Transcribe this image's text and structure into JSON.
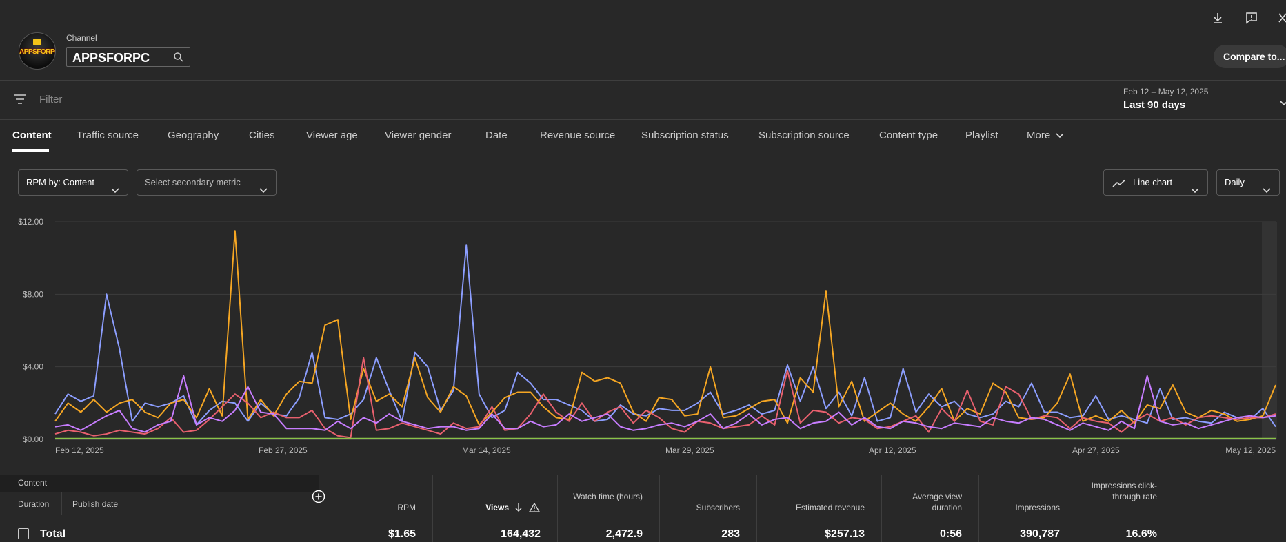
{
  "header": {
    "channel_label": "Channel",
    "channel_name": "APPSFORPC",
    "avatar_text": "APPSFORPC",
    "compare_label": "Compare to..."
  },
  "filter": {
    "placeholder": "Filter"
  },
  "date": {
    "range": "Feb 12 – May 12, 2025",
    "label": "Last 90 days"
  },
  "tabs": [
    {
      "label": "Content"
    },
    {
      "label": "Traffic source"
    },
    {
      "label": "Geography"
    },
    {
      "label": "Cities"
    },
    {
      "label": "Viewer age"
    },
    {
      "label": "Viewer gender"
    },
    {
      "label": "Date"
    },
    {
      "label": "Revenue source"
    },
    {
      "label": "Subscription status"
    },
    {
      "label": "Subscription source"
    },
    {
      "label": "Content type"
    },
    {
      "label": "Playlist"
    },
    {
      "label": "More"
    }
  ],
  "controls": {
    "primary_metric": "RPM by: Content",
    "secondary_metric": "Select secondary metric",
    "chart_type": "Line chart",
    "granularity": "Daily"
  },
  "chart_data": {
    "type": "line",
    "y_ticks": [
      "$12.00",
      "$8.00",
      "$4.00",
      "$0.00"
    ],
    "ylim": [
      0,
      12
    ],
    "x_ticks": [
      "Feb 12, 2025",
      "Feb 27, 2025",
      "Mar 14, 2025",
      "Mar 29, 2025",
      "Apr 12, 2025",
      "Apr 27, 2025",
      "May 12, 2025"
    ],
    "grid": true,
    "series": [
      {
        "color": "#8c9eff",
        "values": [
          1.4,
          2.5,
          2.1,
          2.4,
          8.0,
          5.0,
          1.0,
          2.0,
          1.8,
          2.0,
          2.4,
          0.8,
          1.6,
          2.1,
          2.0,
          1.0,
          2.0,
          1.4,
          1.3,
          2.3,
          4.8,
          1.2,
          1.1,
          1.4,
          2.2,
          4.5,
          2.7,
          1.0,
          4.8,
          4.0,
          1.6,
          2.7,
          10.7,
          2.5,
          1.2,
          1.6,
          3.7,
          3.1,
          2.2,
          2.2,
          1.9,
          1.6,
          1.0,
          1.1,
          1.9,
          1.4,
          1.3,
          1.7,
          1.6,
          1.6,
          2.0,
          2.6,
          1.4,
          1.6,
          1.9,
          1.4,
          1.6,
          4.1,
          2.1,
          4.0,
          1.7,
          2.6,
          1.3,
          3.4,
          1.0,
          1.2,
          3.9,
          1.5,
          2.5,
          1.8,
          2.1,
          1.4,
          1.2,
          1.4,
          2.1,
          1.8,
          3.1,
          1.5,
          1.5,
          1.2,
          1.3,
          2.4,
          1.1,
          1.3,
          1.1,
          0.9,
          2.8,
          1.1,
          1.2,
          1.0,
          0.9,
          1.5,
          1.2,
          1.1,
          1.7,
          0.7
        ]
      },
      {
        "color": "#f5a623",
        "values": [
          1.0,
          2.0,
          1.5,
          2.2,
          1.5,
          2.0,
          2.2,
          1.5,
          1.2,
          2.0,
          2.2,
          1.2,
          2.8,
          1.3,
          11.5,
          1.1,
          2.2,
          1.3,
          2.5,
          3.2,
          3.1,
          6.3,
          6.6,
          1.1,
          3.9,
          2.1,
          2.5,
          1.8,
          4.5,
          2.3,
          1.5,
          2.9,
          2.4,
          0.8,
          1.5,
          2.3,
          2.6,
          2.6,
          1.8,
          1.2,
          1.1,
          3.7,
          3.2,
          3.4,
          3.1,
          1.5,
          1.0,
          2.3,
          2.2,
          1.3,
          1.4,
          4.0,
          1.2,
          1.3,
          1.7,
          2.1,
          2.2,
          0.9,
          3.4,
          2.6,
          8.2,
          1.8,
          3.2,
          1.0,
          1.5,
          2.0,
          1.4,
          1.0,
          1.8,
          2.8,
          1.0,
          1.7,
          1.4,
          3.1,
          2.6,
          1.2,
          1.1,
          1.2,
          2.0,
          3.6,
          1.0,
          1.3,
          1.0,
          1.6,
          0.9,
          1.9,
          1.7,
          3.0,
          1.5,
          1.2,
          1.6,
          1.4,
          1.0,
          1.1,
          1.3,
          3.0
        ]
      },
      {
        "color": "#e8606e",
        "values": [
          0.3,
          0.5,
          0.4,
          0.2,
          0.3,
          0.5,
          0.4,
          0.3,
          0.6,
          1.2,
          0.4,
          0.5,
          1.1,
          1.8,
          2.5,
          2.0,
          1.2,
          1.5,
          1.2,
          1.2,
          1.6,
          0.6,
          0.2,
          0.1,
          4.5,
          0.5,
          0.6,
          0.9,
          0.7,
          0.5,
          0.3,
          0.9,
          0.6,
          0.7,
          1.8,
          0.5,
          0.6,
          1.4,
          2.5,
          1.5,
          1.0,
          2.0,
          1.0,
          1.5,
          1.8,
          0.9,
          1.6,
          1.2,
          0.6,
          0.4,
          1.0,
          0.9,
          0.6,
          0.7,
          0.8,
          1.3,
          0.8,
          3.8,
          0.9,
          1.6,
          1.5,
          0.9,
          1.2,
          1.1,
          0.6,
          0.7,
          1.0,
          1.3,
          0.4,
          1.7,
          1.0,
          2.7,
          1.0,
          0.8,
          2.9,
          2.5,
          1.1,
          1.3,
          1.2,
          0.6,
          1.2,
          1.0,
          0.9,
          0.4,
          1.0,
          1.4,
          1.0,
          1.2,
          0.8,
          1.2,
          1.3,
          1.2,
          1.1,
          1.2,
          1.2,
          1.4
        ]
      },
      {
        "color": "#c77dff",
        "values": [
          0.7,
          0.8,
          0.5,
          0.9,
          1.3,
          1.6,
          0.6,
          0.4,
          0.8,
          1.0,
          3.5,
          0.8,
          1.2,
          1.0,
          1.6,
          2.9,
          1.5,
          1.4,
          0.6,
          0.6,
          0.6,
          0.5,
          1.0,
          0.6,
          1.2,
          0.9,
          1.4,
          1.0,
          0.8,
          0.6,
          0.7,
          0.7,
          0.5,
          0.6,
          1.4,
          0.6,
          0.6,
          1.0,
          0.7,
          0.8,
          1.4,
          1.0,
          1.2,
          1.4,
          0.7,
          0.5,
          0.6,
          0.8,
          0.9,
          0.7,
          1.0,
          1.4,
          0.6,
          0.9,
          1.4,
          0.8,
          1.1,
          1.2,
          0.6,
          0.9,
          1.0,
          1.5,
          0.8,
          1.2,
          0.7,
          0.6,
          1.0,
          0.9,
          0.7,
          0.6,
          0.9,
          0.8,
          0.7,
          1.2,
          1.0,
          0.9,
          1.2,
          1.1,
          0.8,
          0.5,
          0.9,
          0.7,
          0.5,
          1.0,
          0.6,
          3.5,
          1.0,
          0.8,
          0.9,
          0.6,
          0.8,
          1.0,
          1.2,
          1.3,
          1.2,
          1.3
        ]
      },
      {
        "color": "#8bc34a",
        "values": [
          0.05,
          0.05,
          0.05,
          0.05,
          0.05,
          0.05,
          0.05,
          0.05,
          0.05,
          0.05,
          0.05,
          0.05,
          0.05,
          0.05,
          0.05,
          0.05,
          0.05,
          0.05,
          0.05,
          0.05,
          0.05,
          0.05,
          0.05,
          0.05,
          0.05,
          0.05,
          0.05,
          0.05,
          0.05,
          0.05,
          0.05,
          0.05,
          0.05,
          0.05,
          0.05,
          0.05,
          0.05,
          0.05,
          0.05,
          0.05,
          0.05,
          0.05,
          0.05,
          0.05,
          0.05,
          0.05,
          0.05,
          0.05,
          0.05,
          0.05,
          0.05,
          0.05,
          0.05,
          0.05,
          0.05,
          0.05,
          0.05,
          0.05,
          0.05,
          0.05,
          0.05,
          0.05,
          0.05,
          0.05,
          0.05,
          0.05,
          0.05,
          0.05,
          0.05,
          0.05,
          0.05,
          0.05,
          0.05,
          0.05,
          0.05,
          0.05,
          0.05,
          0.05,
          0.05,
          0.05,
          0.05,
          0.05,
          0.05,
          0.05,
          0.05,
          0.05,
          0.05,
          0.05,
          0.05,
          0.05,
          0.05,
          0.05,
          0.05,
          0.05,
          0.05,
          0.05
        ]
      }
    ]
  },
  "table": {
    "group_label": "Content",
    "sub_columns": [
      "Duration",
      "Publish date"
    ],
    "columns": {
      "rpm": "RPM",
      "views": "Views",
      "watch_time": "Watch time (hours)",
      "subscribers": "Subscribers",
      "revenue": "Estimated revenue",
      "avd": "Average view duration",
      "impressions": "Impressions",
      "ctr": "Impressions click-through rate"
    },
    "total": {
      "label": "Total",
      "rpm": "$1.65",
      "views": "164,432",
      "watch_time": "2,472.9",
      "subscribers": "283",
      "revenue": "$257.13",
      "avd": "0:56",
      "impressions": "390,787",
      "ctr": "16.6%"
    }
  }
}
